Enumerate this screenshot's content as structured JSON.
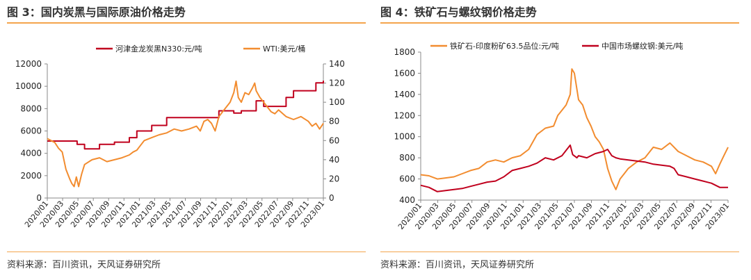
{
  "colors": {
    "accent": "#f4a44c",
    "red_series": "#c0001d",
    "orange_series": "#f28c2f"
  },
  "left": {
    "title": "图 3：国内炭黑与国际原油价格走势",
    "source": "资料来源：百川资讯，天风证券研究所",
    "chart_data": {
      "type": "line",
      "title": "国内炭黑与国际原油价格走势",
      "x_labels": [
        "2020/01",
        "2020/03",
        "2020/05",
        "2020/07",
        "2020/09",
        "2020/11",
        "2021/01",
        "2021/03",
        "2021/05",
        "2021/07",
        "2021/09",
        "2021/11",
        "2022/01",
        "2022/03",
        "2022/05",
        "2022/07",
        "2022/09",
        "2022/11",
        "2023/01"
      ],
      "x_range": [
        0,
        37
      ],
      "ylim_left": [
        0,
        12000
      ],
      "yticks_left": [
        0,
        2000,
        4000,
        6000,
        8000,
        10000,
        12000
      ],
      "ytick_labels_left": [
        "0",
        "2000",
        "4000",
        "6000",
        "8000",
        "10000",
        "12000"
      ],
      "ylim_right": [
        0,
        140
      ],
      "yticks_right": [
        0,
        20,
        40,
        60,
        80,
        100,
        120,
        140
      ],
      "ytick_labels_right": [
        "0",
        "20",
        "40",
        "60",
        "80",
        "100",
        "120",
        "140"
      ],
      "series": [
        {
          "name": "河津金龙炭黑N330:元/吨",
          "axis": "left",
          "color": "#c0001d",
          "step": true,
          "points": [
            [
              0,
              5100
            ],
            [
              1,
              5100
            ],
            [
              2,
              5100
            ],
            [
              3,
              5100
            ],
            [
              4,
              4800
            ],
            [
              5,
              4400
            ],
            [
              6,
              4400
            ],
            [
              7,
              4800
            ],
            [
              8,
              4800
            ],
            [
              9,
              5000
            ],
            [
              10,
              5000
            ],
            [
              11,
              5400
            ],
            [
              12,
              6000
            ],
            [
              14,
              6500
            ],
            [
              16,
              7200
            ],
            [
              18,
              7200
            ],
            [
              20,
              7200
            ],
            [
              22,
              7200
            ],
            [
              23,
              7800
            ],
            [
              24,
              7800
            ],
            [
              25,
              7600
            ],
            [
              26,
              7800
            ],
            [
              28,
              8700
            ],
            [
              29,
              8200
            ],
            [
              31,
              8200
            ],
            [
              32,
              9000
            ],
            [
              33,
              9600
            ],
            [
              35,
              9600
            ],
            [
              36,
              10300
            ],
            [
              37,
              10500
            ]
          ]
        },
        {
          "name": "WTI:美元/桶",
          "axis": "right",
          "color": "#f28c2f",
          "step": false,
          "points": [
            [
              0,
              62
            ],
            [
              0.5,
              60
            ],
            [
              1,
              58
            ],
            [
              1.5,
              52
            ],
            [
              2,
              48
            ],
            [
              2.5,
              30
            ],
            [
              3,
              20
            ],
            [
              3.3,
              15
            ],
            [
              3.6,
              12
            ],
            [
              3.9,
              22
            ],
            [
              4.2,
              12
            ],
            [
              4.6,
              25
            ],
            [
              5,
              35
            ],
            [
              6,
              40
            ],
            [
              7,
              42
            ],
            [
              8,
              38
            ],
            [
              9,
              40
            ],
            [
              10,
              42
            ],
            [
              11,
              45
            ],
            [
              11.5,
              48
            ],
            [
              12,
              50
            ],
            [
              12.5,
              55
            ],
            [
              13,
              60
            ],
            [
              14,
              63
            ],
            [
              15,
              66
            ],
            [
              16,
              68
            ],
            [
              17,
              72
            ],
            [
              18,
              70
            ],
            [
              19,
              72
            ],
            [
              20,
              75
            ],
            [
              20.5,
              70
            ],
            [
              21,
              80
            ],
            [
              21.5,
              82
            ],
            [
              22,
              78
            ],
            [
              22.5,
              70
            ],
            [
              23,
              85
            ],
            [
              23.5,
              90
            ],
            [
              24,
              95
            ],
            [
              24.5,
              100
            ],
            [
              25,
              110
            ],
            [
              25.3,
              122
            ],
            [
              25.6,
              105
            ],
            [
              26,
              100
            ],
            [
              26.5,
              110
            ],
            [
              27,
              108
            ],
            [
              27.5,
              115
            ],
            [
              27.8,
              120
            ],
            [
              28,
              112
            ],
            [
              28.5,
              105
            ],
            [
              29,
              100
            ],
            [
              29.5,
              95
            ],
            [
              30,
              90
            ],
            [
              30.5,
              88
            ],
            [
              31,
              92
            ],
            [
              32,
              85
            ],
            [
              33,
              82
            ],
            [
              34,
              85
            ],
            [
              35,
              80
            ],
            [
              35.5,
              75
            ],
            [
              36,
              78
            ],
            [
              36.5,
              72
            ],
            [
              37,
              78
            ]
          ]
        }
      ],
      "legend": [
        {
          "name": "河津金龙炭黑N330:元/吨",
          "color": "#c0001d"
        },
        {
          "name": "WTI:美元/桶",
          "color": "#f28c2f"
        }
      ]
    }
  },
  "right": {
    "title": "图 4：铁矿石与螺纹钢价格走势",
    "source": "资料来源：百川资讯，天风证券研究所",
    "chart_data": {
      "type": "line",
      "title": "铁矿石与螺纹钢价格走势",
      "x_labels": [
        "2020/01",
        "2020/03",
        "2020/05",
        "2020/07",
        "2020/09",
        "2020/11",
        "2021/01",
        "2021/03",
        "2021/05",
        "2021/07",
        "2021/09",
        "2021/11",
        "2022/01",
        "2022/03",
        "2022/05",
        "2022/07",
        "2022/09",
        "2022/11",
        "2023/01"
      ],
      "x_range": [
        0,
        37
      ],
      "ylim": [
        400,
        1800
      ],
      "yticks": [
        400,
        600,
        800,
        1000,
        1200,
        1400,
        1600,
        1800
      ],
      "ytick_labels": [
        "400",
        "600",
        "800",
        "1000",
        "1200",
        "1400",
        "1600",
        "1800"
      ],
      "series": [
        {
          "name": "铁矿石-印度粉矿63.5品位:元/吨",
          "color": "#f28c2f",
          "points": [
            [
              0,
              640
            ],
            [
              1,
              630
            ],
            [
              2,
              600
            ],
            [
              3,
              610
            ],
            [
              4,
              620
            ],
            [
              5,
              650
            ],
            [
              6,
              680
            ],
            [
              7,
              700
            ],
            [
              8,
              760
            ],
            [
              9,
              780
            ],
            [
              10,
              760
            ],
            [
              11,
              800
            ],
            [
              12,
              820
            ],
            [
              13,
              880
            ],
            [
              14,
              1020
            ],
            [
              15,
              1080
            ],
            [
              16,
              1100
            ],
            [
              16.5,
              1200
            ],
            [
              17,
              1250
            ],
            [
              17.5,
              1300
            ],
            [
              18,
              1400
            ],
            [
              18.2,
              1640
            ],
            [
              18.5,
              1600
            ],
            [
              19,
              1350
            ],
            [
              19.5,
              1300
            ],
            [
              20,
              1180
            ],
            [
              20.5,
              1100
            ],
            [
              21,
              1000
            ],
            [
              21.5,
              950
            ],
            [
              22,
              880
            ],
            [
              22.5,
              700
            ],
            [
              23,
              580
            ],
            [
              23.5,
              500
            ],
            [
              24,
              600
            ],
            [
              24.5,
              650
            ],
            [
              25,
              700
            ],
            [
              26,
              760
            ],
            [
              27,
              800
            ],
            [
              28,
              900
            ],
            [
              29,
              880
            ],
            [
              30,
              940
            ],
            [
              31,
              860
            ],
            [
              32,
              820
            ],
            [
              33,
              780
            ],
            [
              34,
              760
            ],
            [
              35,
              720
            ],
            [
              35.5,
              650
            ],
            [
              36,
              740
            ],
            [
              36.5,
              820
            ],
            [
              37,
              900
            ]
          ]
        },
        {
          "name": "中国市场螺纹钢:美元/吨",
          "color": "#c0001d",
          "points": [
            [
              0,
              540
            ],
            [
              1,
              520
            ],
            [
              2,
              480
            ],
            [
              3,
              490
            ],
            [
              4,
              500
            ],
            [
              5,
              510
            ],
            [
              6,
              530
            ],
            [
              7,
              550
            ],
            [
              8,
              570
            ],
            [
              9,
              580
            ],
            [
              10,
              620
            ],
            [
              11,
              680
            ],
            [
              12,
              700
            ],
            [
              13,
              720
            ],
            [
              14,
              750
            ],
            [
              15,
              800
            ],
            [
              16,
              780
            ],
            [
              17,
              820
            ],
            [
              18,
              920
            ],
            [
              18.3,
              830
            ],
            [
              18.8,
              800
            ],
            [
              19,
              820
            ],
            [
              20,
              800
            ],
            [
              21,
              840
            ],
            [
              22,
              860
            ],
            [
              22.5,
              880
            ],
            [
              23,
              820
            ],
            [
              23.5,
              800
            ],
            [
              24,
              790
            ],
            [
              25,
              780
            ],
            [
              26,
              770
            ],
            [
              27,
              760
            ],
            [
              28,
              740
            ],
            [
              29,
              730
            ],
            [
              30,
              720
            ],
            [
              30.5,
              700
            ],
            [
              31,
              640
            ],
            [
              32,
              620
            ],
            [
              33,
              600
            ],
            [
              34,
              580
            ],
            [
              35,
              560
            ],
            [
              36,
              520
            ],
            [
              37,
              520
            ]
          ]
        }
      ],
      "legend": [
        {
          "name": "铁矿石-印度粉矿63.5品位:元/吨",
          "color": "#f28c2f"
        },
        {
          "name": "中国市场螺纹钢:美元/吨",
          "color": "#c0001d"
        }
      ]
    }
  }
}
